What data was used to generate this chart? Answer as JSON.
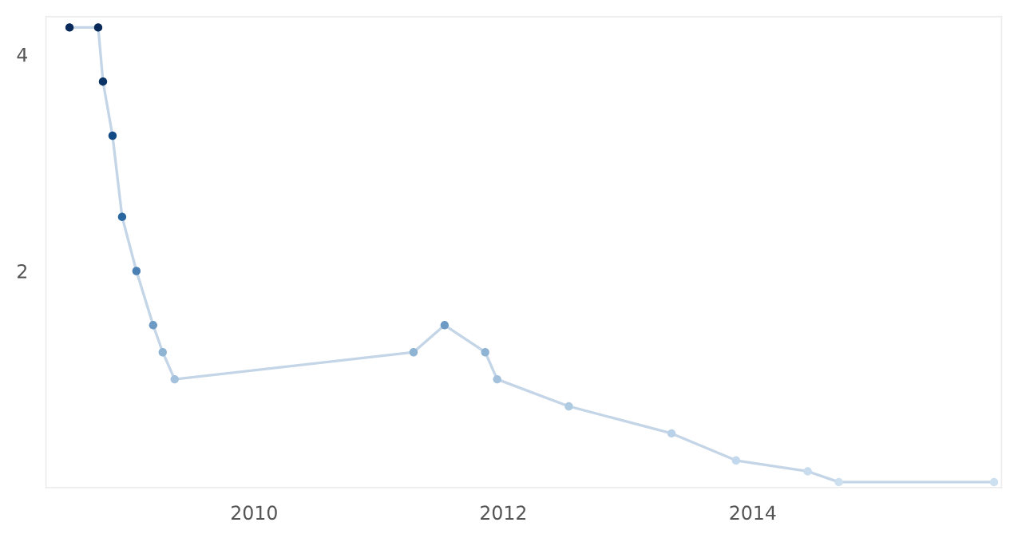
{
  "chart_data": {
    "type": "line",
    "x": [
      "2008-07-09",
      "2008-10-01",
      "2008-10-15",
      "2008-11-12",
      "2008-12-10",
      "2009-01-21",
      "2009-03-11",
      "2009-04-08",
      "2009-05-13",
      "2011-04-13",
      "2011-07-13",
      "2011-11-09",
      "2011-12-14",
      "2012-07-11",
      "2013-05-08",
      "2013-11-13",
      "2014-06-11",
      "2014-09-10",
      "2015-12-09"
    ],
    "series": [
      {
        "color": "#c3d5e6",
        "values": [
          4.25,
          4.25,
          3.75,
          3.25,
          2.5,
          2.0,
          1.5,
          1.25,
          1.0,
          1.25,
          1.5,
          1.25,
          1.0,
          0.75,
          0.5,
          0.25,
          0.15,
          0.05,
          0.05
        ],
        "colors": [
          "#08295a",
          "#08295a",
          "#0b3366",
          "#124a86",
          "#2a67a0",
          "#4a80b3",
          "#6d9ac4",
          "#8fb3d3",
          "#a3c1dc",
          "#8fb3d3",
          "#6d9ac4",
          "#8fb3d3",
          "#a3c1dc",
          "#aecbe2",
          "#b9d2e8",
          "#c2d8ec",
          "#c9dcee",
          "#cde0f0",
          "#cde0f0"
        ]
      }
    ],
    "marker": "circle",
    "line_style": "solid",
    "grid": false,
    "legend": false,
    "xlim": [
      "2008-05-01",
      "2015-12-31"
    ],
    "ylim": [
      0,
      4.35
    ],
    "xticks": [
      {
        "value": "2010-01-01",
        "label": "2010"
      },
      {
        "value": "2012-01-01",
        "label": "2012"
      },
      {
        "value": "2014-01-01",
        "label": "2014"
      }
    ],
    "yticks": [
      2,
      4
    ]
  }
}
